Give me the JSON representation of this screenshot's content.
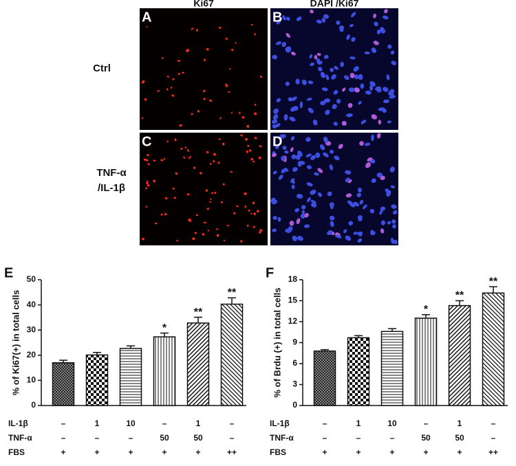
{
  "panels": {
    "column_titles": [
      "Ki67",
      "DAPI /Ki67"
    ],
    "row_labels": [
      [
        "Ctrl"
      ],
      [
        "TNF-α",
        "/IL-1β"
      ]
    ],
    "letters": [
      "A",
      "B",
      "C",
      "D"
    ]
  },
  "chart_data": [
    {
      "type": "bar",
      "panel": "E",
      "ylabel": "% of Ki67(+) in total cells",
      "ylim": [
        0,
        50
      ],
      "yticks": [
        0,
        10,
        20,
        30,
        40,
        50
      ],
      "values": [
        17,
        20.1,
        22.7,
        27.3,
        32.8,
        40.3
      ],
      "errors": [
        1,
        1,
        1,
        1.5,
        2.3,
        2.5
      ],
      "significance": [
        null,
        null,
        null,
        "*",
        "**",
        "**"
      ],
      "patterns": [
        "crosshatch",
        "checker",
        "horizontal",
        "vertical",
        "diagonal-up",
        "diagonal-down"
      ],
      "conditions": [
        {
          "name": "IL-1β",
          "values": [
            "–",
            "1",
            "10",
            "–",
            "1",
            "–"
          ]
        },
        {
          "name": "TNF-α",
          "values": [
            "–",
            "–",
            "–",
            "50",
            "50",
            "–"
          ]
        },
        {
          "name": "FBS",
          "values": [
            "+",
            "+",
            "+",
            "+",
            "+",
            "++"
          ]
        }
      ]
    },
    {
      "type": "bar",
      "panel": "F",
      "ylabel": "% of Brdu (+) in total cells",
      "ylim": [
        0,
        18
      ],
      "yticks": [
        0,
        3,
        6,
        9,
        12,
        15,
        18
      ],
      "values": [
        7.8,
        9.7,
        10.6,
        12.5,
        14.3,
        16.1
      ],
      "errors": [
        0.2,
        0.3,
        0.4,
        0.5,
        0.7,
        0.9
      ],
      "significance": [
        null,
        null,
        null,
        "*",
        "**",
        "**"
      ],
      "patterns": [
        "crosshatch",
        "checker",
        "horizontal",
        "vertical",
        "diagonal-up",
        "diagonal-down"
      ],
      "conditions": [
        {
          "name": "IL-1β",
          "values": [
            "–",
            "1",
            "10",
            "–",
            "1",
            "–"
          ]
        },
        {
          "name": "TNF-α",
          "values": [
            "–",
            "–",
            "–",
            "50",
            "50",
            "–"
          ]
        },
        {
          "name": "FBS",
          "values": [
            "+",
            "+",
            "+",
            "+",
            "+",
            "++"
          ]
        }
      ]
    }
  ]
}
